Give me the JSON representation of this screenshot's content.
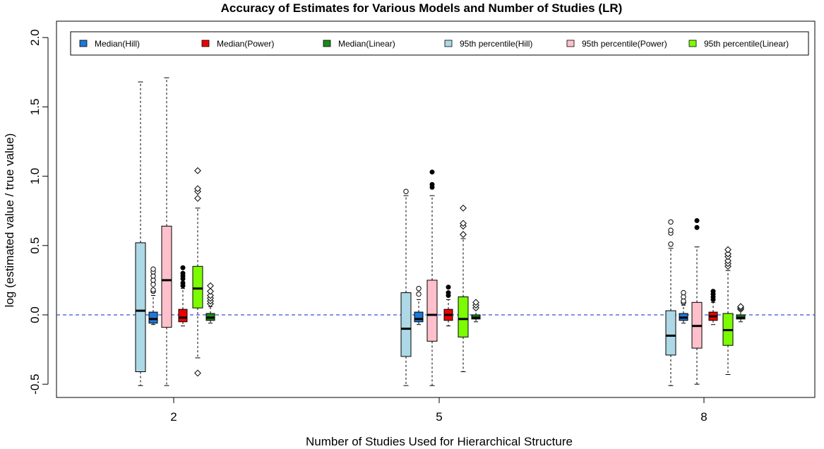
{
  "chart_data": {
    "type": "box",
    "title": "Accuracy of Estimates for Various Models and Number of Studies (LR)",
    "xlabel": "Number of Studies Used for Hierarchical Structure",
    "ylabel": "log (estimated value / true value)",
    "categories": [
      "2",
      "5",
      "8"
    ],
    "ylim": [
      -0.6,
      2.05
    ],
    "yticks": [
      -0.5,
      0.0,
      0.5,
      1.0,
      1.5,
      2.0
    ],
    "ytick_labels": [
      "-0.5",
      "0.0",
      "0.5",
      "1.0",
      "1.5",
      "2.0"
    ],
    "reference_line": {
      "y": 0.0,
      "style": "dashed",
      "color": "#3a4fd6"
    },
    "legend_position": "top",
    "series": [
      {
        "name": "95th percentile(Hill)",
        "color": "#add8e6",
        "outlier_marker": "circle",
        "boxes": [
          {
            "min": -0.51,
            "q1": -0.41,
            "median": 0.03,
            "q3": 0.52,
            "max": 1.68,
            "outliers": []
          },
          {
            "min": -0.51,
            "q1": -0.3,
            "median": -0.1,
            "q3": 0.16,
            "max": 0.86,
            "outliers": [
              0.89
            ]
          },
          {
            "min": -0.51,
            "q1": -0.29,
            "median": -0.15,
            "q3": 0.03,
            "max": 0.48,
            "outliers": [
              0.51,
              0.59,
              0.61,
              0.67
            ]
          }
        ]
      },
      {
        "name": "Median(Hill)",
        "color": "#1e78d8",
        "outlier_marker": "circle",
        "boxes": [
          {
            "min": -0.07,
            "q1": -0.06,
            "median": -0.03,
            "q3": 0.02,
            "max": 0.14,
            "outliers": [
              0.17,
              0.18,
              0.22,
              0.25,
              0.28,
              0.31,
              0.33
            ]
          },
          {
            "min": -0.07,
            "q1": -0.05,
            "median": -0.03,
            "q3": 0.02,
            "max": 0.11,
            "outliers": [
              0.15,
              0.19
            ]
          },
          {
            "min": -0.06,
            "q1": -0.04,
            "median": -0.02,
            "q3": 0.01,
            "max": 0.07,
            "outliers": [
              0.09,
              0.1,
              0.13,
              0.16
            ]
          }
        ]
      },
      {
        "name": "95th percentile(Power)",
        "color": "#ffc0cb",
        "outlier_marker": "dot",
        "boxes": [
          {
            "min": -0.51,
            "q1": -0.09,
            "median": 0.25,
            "q3": 0.64,
            "max": 1.71,
            "outliers": []
          },
          {
            "min": -0.51,
            "q1": -0.19,
            "median": 0.0,
            "q3": 0.25,
            "max": 0.86,
            "outliers": [
              0.92,
              0.94,
              1.03
            ]
          },
          {
            "min": -0.5,
            "q1": -0.24,
            "median": -0.08,
            "q3": 0.09,
            "max": 0.49,
            "outliers": [
              0.63,
              0.68
            ]
          }
        ]
      },
      {
        "name": "Median(Power)",
        "color": "#ee0000",
        "outlier_marker": "dot",
        "boxes": [
          {
            "min": -0.08,
            "q1": -0.05,
            "median": -0.02,
            "q3": 0.04,
            "max": 0.19,
            "outliers": [
              0.21,
              0.23,
              0.26,
              0.28,
              0.3,
              0.34
            ]
          },
          {
            "min": -0.08,
            "q1": -0.04,
            "median": 0.0,
            "q3": 0.04,
            "max": 0.11,
            "outliers": [
              0.14,
              0.16,
              0.2
            ]
          },
          {
            "min": -0.07,
            "q1": -0.04,
            "median": -0.01,
            "q3": 0.02,
            "max": 0.09,
            "outliers": [
              0.11,
              0.13,
              0.15,
              0.17
            ]
          }
        ]
      },
      {
        "name": "95th percentile(Linear)",
        "color": "#7cfc00",
        "outlier_marker": "diamond",
        "boxes": [
          {
            "min": -0.31,
            "q1": 0.05,
            "median": 0.19,
            "q3": 0.35,
            "max": 0.77,
            "outliers": [
              -0.42,
              0.84,
              0.89,
              0.91,
              1.04
            ]
          },
          {
            "min": -0.41,
            "q1": -0.16,
            "median": -0.03,
            "q3": 0.13,
            "max": 0.55,
            "outliers": [
              0.58,
              0.64,
              0.66,
              0.77
            ]
          },
          {
            "min": -0.43,
            "q1": -0.22,
            "median": -0.11,
            "q3": 0.01,
            "max": 0.32,
            "outliers": [
              0.35,
              0.37,
              0.39,
              0.42,
              0.44,
              0.47
            ]
          }
        ]
      },
      {
        "name": "Median(Linear)",
        "color": "#1a8a1a",
        "outlier_marker": "diamond",
        "boxes": [
          {
            "min": -0.06,
            "q1": -0.04,
            "median": -0.02,
            "q3": 0.01,
            "max": 0.06,
            "outliers": [
              0.08,
              0.1,
              0.12,
              0.14,
              0.17,
              0.21
            ]
          },
          {
            "min": -0.05,
            "q1": -0.03,
            "median": -0.02,
            "q3": 0.0,
            "max": 0.04,
            "outliers": [
              0.05,
              0.07,
              0.09
            ]
          },
          {
            "min": -0.05,
            "q1": -0.03,
            "median": -0.02,
            "q3": 0.0,
            "max": 0.03,
            "outliers": [
              0.04,
              0.05,
              0.06
            ]
          }
        ]
      }
    ],
    "legend": [
      {
        "label": "Median(Hill)",
        "color": "#1e78d8"
      },
      {
        "label": "Median(Power)",
        "color": "#ee0000"
      },
      {
        "label": "Median(Linear)",
        "color": "#1a8a1a"
      },
      {
        "label": "95th percentile(Hill)",
        "color": "#add8e6"
      },
      {
        "label": "95th percentile(Power)",
        "color": "#ffc0cb"
      },
      {
        "label": "95th percentile(Linear)",
        "color": "#7cfc00"
      }
    ]
  }
}
